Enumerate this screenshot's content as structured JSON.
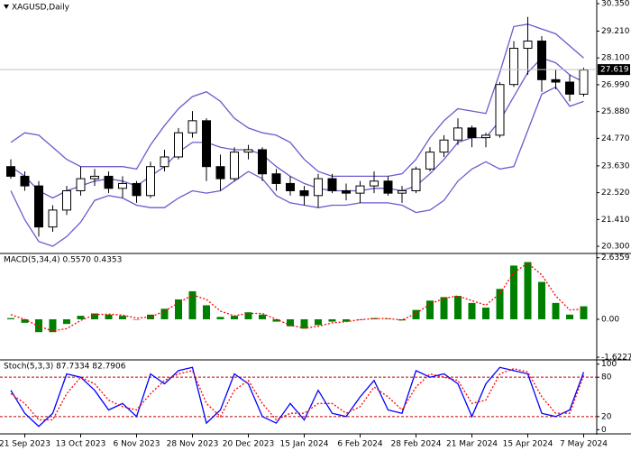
{
  "chart_data": [
    {
      "type": "candlestick",
      "title": "XAGUSD,Daily",
      "categories": [
        null,
        "21 Sep 2023",
        null,
        null,
        null,
        "13 Oct 2023",
        null,
        null,
        null,
        "6 Nov 2023",
        null,
        null,
        null,
        "28 Nov 2023",
        null,
        null,
        null,
        "20 Dec 2023",
        null,
        null,
        null,
        "15 Jan 2024",
        null,
        null,
        null,
        "6 Feb 2024",
        null,
        null,
        null,
        "28 Feb 2024",
        null,
        null,
        null,
        "21 Mar 2024",
        null,
        null,
        null,
        "15 Apr 2024",
        null,
        null,
        null,
        "7 May 2024"
      ],
      "open": [
        23.6,
        23.2,
        22.8,
        21.1,
        21.8,
        22.6,
        23.1,
        23.2,
        22.7,
        22.9,
        22.4,
        23.6,
        24.0,
        25.0,
        25.5,
        23.6,
        23.1,
        24.2,
        24.3,
        23.3,
        22.9,
        22.6,
        22.4,
        23.1,
        22.6,
        22.5,
        22.8,
        23.0,
        22.5,
        22.6,
        23.5,
        24.2,
        24.7,
        25.2,
        24.8,
        24.9,
        27.0,
        28.5,
        28.8,
        27.2,
        27.1,
        26.6
      ],
      "high": [
        23.9,
        23.4,
        23.0,
        22.0,
        22.8,
        23.6,
        23.5,
        23.4,
        23.2,
        23.0,
        23.8,
        24.3,
        25.2,
        25.9,
        25.6,
        24.1,
        24.4,
        24.5,
        24.4,
        23.5,
        23.2,
        22.8,
        23.3,
        23.3,
        22.9,
        23.0,
        23.4,
        23.2,
        22.8,
        23.6,
        24.4,
        24.9,
        25.6,
        25.3,
        25.0,
        27.1,
        28.8,
        29.8,
        29.0,
        27.6,
        27.4,
        27.7
      ],
      "low": [
        23.1,
        22.6,
        20.7,
        20.9,
        21.6,
        22.4,
        22.8,
        22.5,
        22.3,
        22.1,
        22.3,
        23.4,
        23.9,
        24.8,
        23.0,
        22.6,
        23.0,
        23.9,
        23.0,
        22.6,
        22.4,
        22.0,
        21.9,
        22.5,
        22.2,
        22.1,
        22.5,
        22.4,
        22.1,
        22.5,
        23.4,
        24.0,
        24.5,
        24.4,
        24.4,
        24.8,
        26.9,
        27.4,
        26.7,
        26.8,
        26.3,
        26.5
      ],
      "close": [
        23.2,
        22.8,
        21.1,
        21.8,
        22.6,
        23.1,
        23.2,
        22.7,
        22.9,
        22.4,
        23.6,
        24.0,
        25.0,
        25.5,
        23.6,
        23.1,
        24.2,
        24.3,
        23.3,
        22.9,
        22.6,
        22.4,
        23.1,
        22.6,
        22.5,
        22.8,
        23.0,
        22.5,
        22.6,
        23.5,
        24.2,
        24.7,
        25.2,
        24.8,
        24.9,
        27.0,
        28.5,
        28.8,
        27.2,
        27.1,
        26.6,
        27.6
      ],
      "series": [
        {
          "color": "#6a5acd",
          "values": [
            24.6,
            25.0,
            24.9,
            24.4,
            23.9,
            23.6,
            23.6,
            23.6,
            23.6,
            23.5,
            24.5,
            25.3,
            26.0,
            26.5,
            26.7,
            26.3,
            25.6,
            25.2,
            25.0,
            24.9,
            24.6,
            23.9,
            23.4,
            23.2,
            23.2,
            23.2,
            23.2,
            23.2,
            23.3,
            23.9,
            24.8,
            25.5,
            26.0,
            25.9,
            25.8,
            27.5,
            29.4,
            29.5,
            29.3,
            29.1,
            28.6,
            28.1
          ]
        },
        {
          "color": "#6a5acd",
          "values": [
            23.6,
            23.2,
            22.6,
            22.3,
            22.6,
            22.8,
            23.0,
            23.1,
            23.0,
            22.8,
            23.2,
            23.6,
            24.2,
            24.6,
            24.6,
            24.4,
            24.3,
            24.3,
            24.1,
            23.6,
            23.2,
            22.9,
            22.7,
            22.6,
            22.6,
            22.6,
            22.7,
            22.7,
            22.6,
            22.8,
            23.3,
            23.9,
            24.6,
            24.8,
            24.8,
            25.5,
            26.5,
            27.5,
            28.1,
            27.9,
            27.4,
            27.1
          ]
        },
        {
          "color": "#6a5acd",
          "values": [
            22.6,
            21.4,
            20.5,
            20.3,
            20.7,
            21.3,
            22.2,
            22.4,
            22.3,
            22.0,
            21.9,
            21.9,
            22.3,
            22.6,
            22.5,
            22.6,
            23.0,
            23.4,
            23.1,
            22.4,
            22.1,
            22.0,
            21.9,
            22.0,
            22.0,
            22.1,
            22.1,
            22.1,
            22.0,
            21.7,
            21.8,
            22.2,
            23.0,
            23.5,
            23.8,
            23.5,
            23.6,
            25.1,
            26.6,
            26.9,
            26.1,
            26.3
          ]
        }
      ],
      "current_price": 27.619,
      "ylim": [
        20.04,
        30.5
      ],
      "yticks": [
        {
          "value": 30.35,
          "label": "30.350"
        },
        {
          "value": 29.21,
          "label": "29.210"
        },
        {
          "value": 28.1,
          "label": "28.100"
        },
        {
          "value": 26.99,
          "label": "26.990"
        },
        {
          "value": 25.88,
          "label": "25.880"
        },
        {
          "value": 24.77,
          "label": "24.770"
        },
        {
          "value": 23.63,
          "label": "23.630"
        },
        {
          "value": 22.52,
          "label": "22.520"
        },
        {
          "value": 21.41,
          "label": "21.410"
        },
        {
          "value": 20.3,
          "label": "20.300"
        }
      ]
    },
    {
      "type": "bar",
      "title": "MACD(5,34,4) 0.5570 0.4353",
      "color": "#008000",
      "values": [
        0.05,
        -0.15,
        -0.55,
        -0.55,
        -0.2,
        0.15,
        0.25,
        0.2,
        0.15,
        0.0,
        0.2,
        0.45,
        0.85,
        1.2,
        0.6,
        0.1,
        0.15,
        0.3,
        0.2,
        -0.1,
        -0.3,
        -0.4,
        -0.25,
        -0.1,
        -0.1,
        0.0,
        0.05,
        0.02,
        -0.05,
        0.4,
        0.8,
        0.95,
        1.0,
        0.7,
        0.5,
        1.3,
        2.3,
        2.45,
        1.6,
        0.7,
        0.2,
        0.557
      ],
      "series": [
        {
          "color": "#ff0000",
          "values": [
            0.2,
            0.0,
            -0.3,
            -0.5,
            -0.4,
            -0.05,
            0.2,
            0.22,
            0.18,
            0.05,
            0.1,
            0.35,
            0.7,
            1.05,
            0.85,
            0.35,
            0.15,
            0.25,
            0.25,
            0.0,
            -0.25,
            -0.38,
            -0.3,
            -0.15,
            -0.1,
            -0.02,
            0.03,
            0.03,
            -0.03,
            0.25,
            0.65,
            0.9,
            1.0,
            0.8,
            0.6,
            1.1,
            2.0,
            2.4,
            1.9,
            1.0,
            0.4,
            0.4353
          ]
        }
      ],
      "ylim": [
        -1.7,
        2.78
      ],
      "yticks": [
        2.6359,
        {
          "value": 0,
          "label": "0.00"
        },
        -1.6227
      ]
    },
    {
      "type": "line",
      "title": "Stoch(5,3,3) 87.7334 82.7906",
      "series": [
        {
          "color": "#0000ff",
          "values": [
            60,
            25,
            5,
            25,
            85,
            80,
            60,
            30,
            40,
            20,
            85,
            70,
            90,
            95,
            10,
            30,
            85,
            70,
            20,
            10,
            40,
            15,
            60,
            25,
            20,
            50,
            75,
            30,
            25,
            90,
            80,
            85,
            70,
            20,
            70,
            95,
            90,
            85,
            25,
            20,
            30,
            87.7334
          ]
        },
        {
          "color": "#ff0000",
          "values": [
            55,
            40,
            15,
            15,
            55,
            80,
            70,
            45,
            35,
            30,
            55,
            75,
            85,
            90,
            40,
            20,
            60,
            75,
            40,
            15,
            25,
            25,
            40,
            40,
            25,
            35,
            65,
            50,
            30,
            65,
            85,
            80,
            75,
            40,
            45,
            85,
            93,
            88,
            50,
            25,
            25,
            82.7906
          ]
        }
      ],
      "levels": [
        80,
        20
      ],
      "ylim": [
        -5,
        105
      ],
      "yticks": [
        100,
        80,
        20,
        0
      ]
    }
  ]
}
